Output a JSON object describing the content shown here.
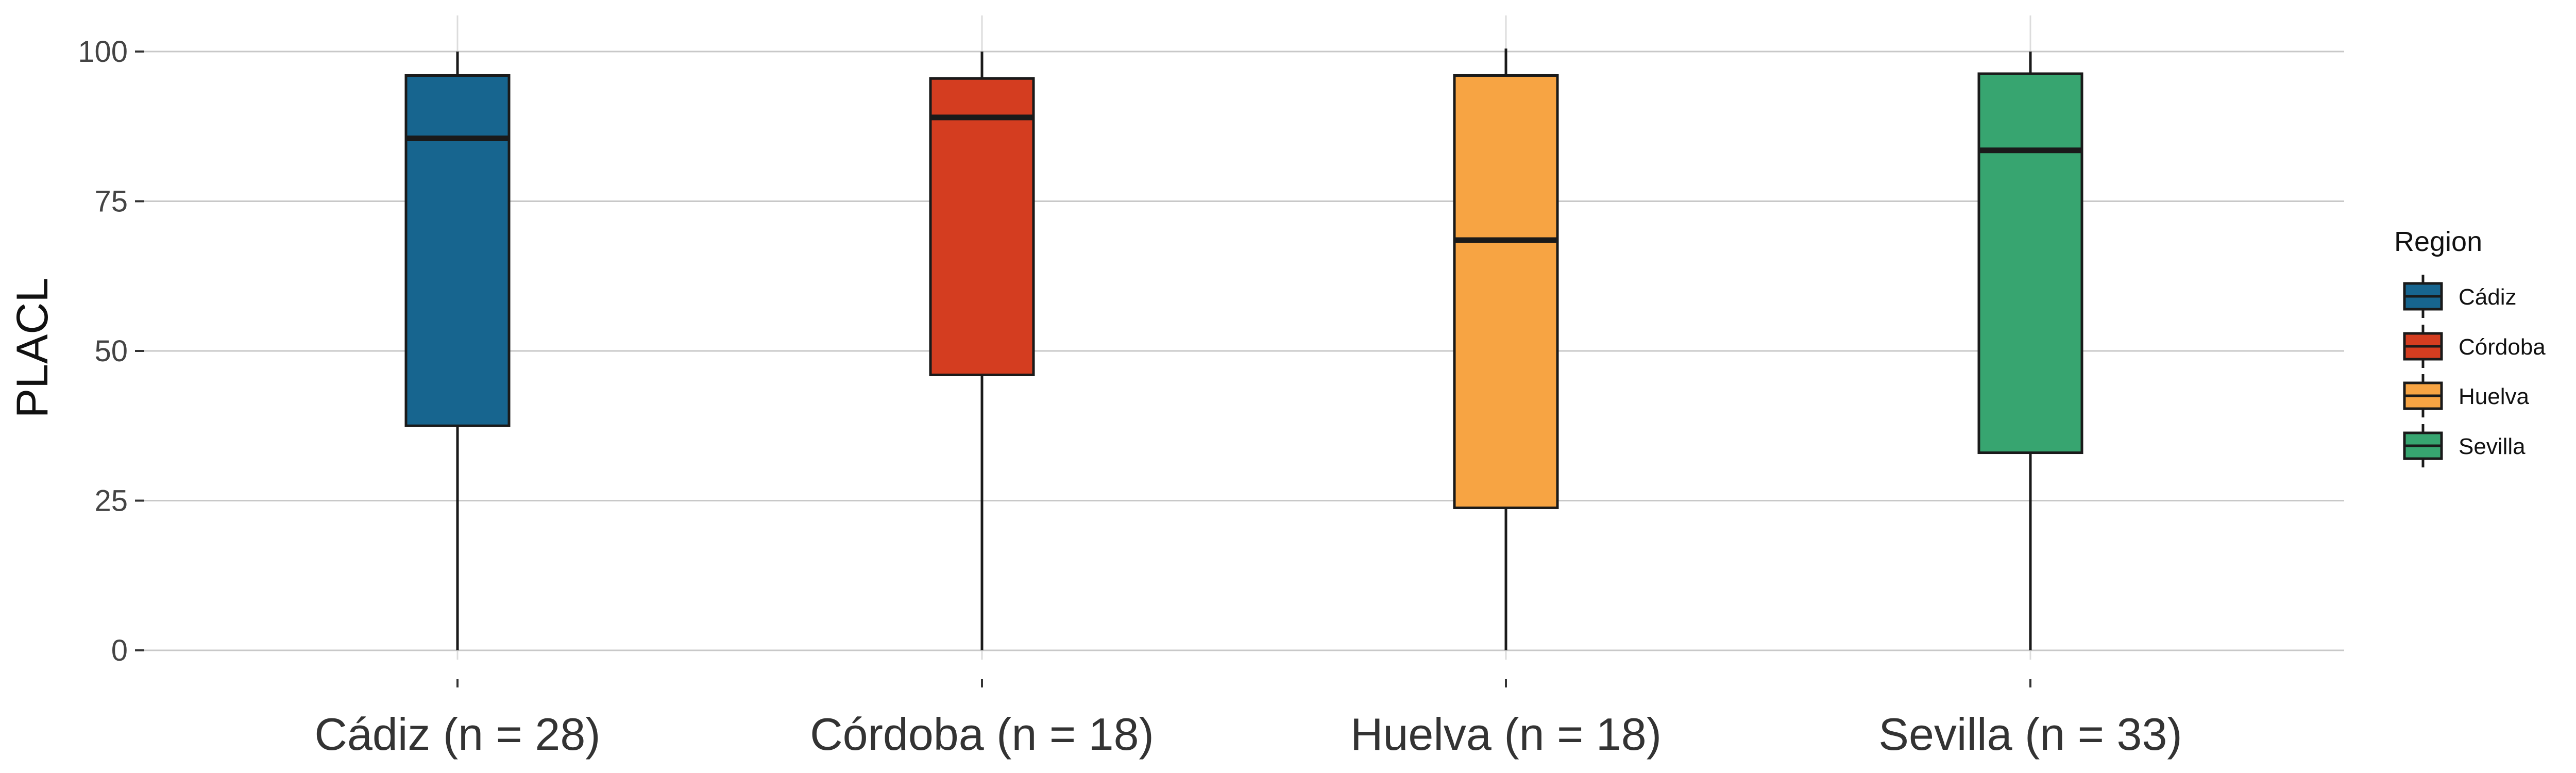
{
  "chart_data": {
    "type": "boxplot",
    "ylabel": "PLACL",
    "xlabel": "",
    "ylim": [
      0,
      100
    ],
    "yticks": [
      "0",
      "25",
      "50",
      "75",
      "100"
    ],
    "categories": [
      "Cádiz (n = 28)",
      "Córdoba (n = 18)",
      "Huelva (n = 18)",
      "Sevilla (n = 33)"
    ],
    "boxes": [
      {
        "region": "Cádiz",
        "min": 0,
        "q1": 37.5,
        "median": 85.5,
        "q3": 96.0,
        "max": 100.0,
        "color": "#17658f"
      },
      {
        "region": "Córdoba",
        "min": 0,
        "q1": 46.0,
        "median": 89.0,
        "q3": 95.5,
        "max": 100.0,
        "color": "#d43d20"
      },
      {
        "region": "Huelva",
        "min": 0,
        "q1": 23.8,
        "median": 68.5,
        "q3": 96.0,
        "max": 100.5,
        "color": "#f7a443"
      },
      {
        "region": "Sevilla",
        "min": 0,
        "q1": 33.0,
        "median": 83.5,
        "q3": 96.3,
        "max": 100.0,
        "color": "#37a570"
      }
    ],
    "legend": {
      "title": "Region",
      "position": "right",
      "entries": [
        "Cádiz",
        "Córdoba",
        "Huelva",
        "Sevilla"
      ]
    },
    "grid": true
  }
}
